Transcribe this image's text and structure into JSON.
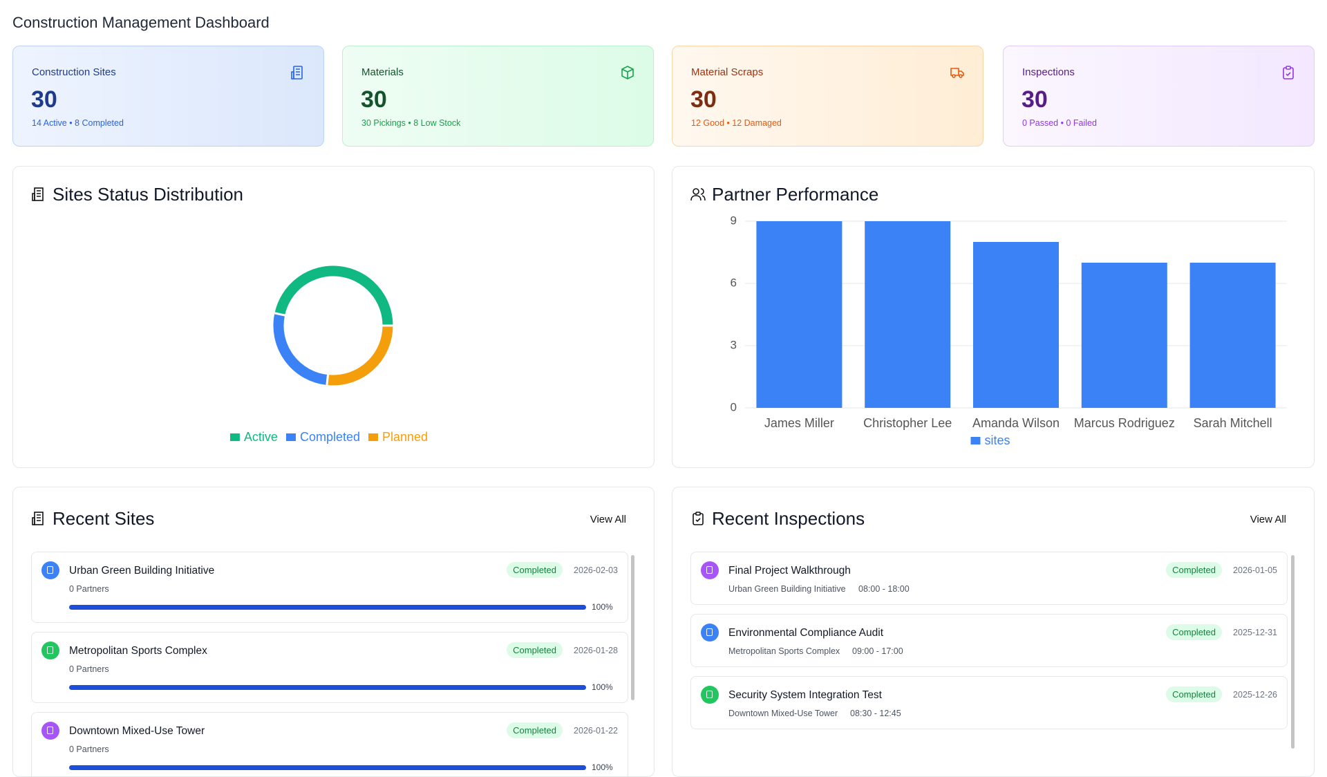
{
  "header": {
    "title": "Construction Management Dashboard"
  },
  "stat_cards": [
    {
      "label": "Construction Sites",
      "value": 30,
      "detail": "14 Active • 8 Completed"
    },
    {
      "label": "Materials",
      "value": 30,
      "detail": "30 Pickings • 8 Low Stock"
    },
    {
      "label": "Material Scraps",
      "value": 30,
      "detail": "12 Good • 12 Damaged"
    },
    {
      "label": "Inspections",
      "value": 30,
      "detail": "0 Passed • 0 Failed"
    }
  ],
  "chart_data": [
    {
      "type": "donut",
      "title": "Sites Status Distribution",
      "categories": [
        "Active",
        "Completed",
        "Planned"
      ],
      "values": [
        14,
        8,
        8
      ],
      "colors": [
        "#10b981",
        "#3b82f6",
        "#f59e0b"
      ],
      "legend": "bottom"
    },
    {
      "type": "bar",
      "title": "Partner Performance",
      "categories": [
        "James Miller",
        "Christopher Lee",
        "Amanda Wilson",
        "Marcus Rodriguez",
        "Sarah Mitchell"
      ],
      "series": [
        {
          "name": "sites",
          "color": "#3b82f6",
          "values": [
            9,
            9,
            8,
            7,
            7
          ]
        }
      ],
      "ylim": [
        0,
        9
      ],
      "yticks": [
        0,
        3,
        6,
        9
      ],
      "grid": true,
      "legend": "bottom"
    }
  ],
  "recent_sites": {
    "title": "Recent Sites",
    "action": "View All",
    "items": [
      {
        "name": "Urban Green Building Initiative",
        "status": "Completed",
        "date": "2026-02-03",
        "partners": "0 Partners",
        "progress": 100,
        "progress_label": "100%",
        "icon_color": "#3b82f6"
      },
      {
        "name": "Metropolitan Sports Complex",
        "status": "Completed",
        "date": "2026-01-28",
        "partners": "0 Partners",
        "progress": 100,
        "progress_label": "100%",
        "icon_color": "#22c55e"
      },
      {
        "name": "Downtown Mixed-Use Tower",
        "status": "Completed",
        "date": "2026-01-22",
        "partners": "0 Partners",
        "progress": 100,
        "progress_label": "100%",
        "icon_color": "#a855f7"
      }
    ]
  },
  "recent_inspections": {
    "title": "Recent Inspections",
    "action": "View All",
    "items": [
      {
        "name": "Final Project Walkthrough",
        "site": "Urban Green Building Initiative",
        "time": "08:00 - 18:00",
        "status": "Completed",
        "date": "2026-01-05",
        "icon_color": "#a855f7"
      },
      {
        "name": "Environmental Compliance Audit",
        "site": "Metropolitan Sports Complex",
        "time": "09:00 - 17:00",
        "status": "Completed",
        "date": "2025-12-31",
        "icon_color": "#3b82f6"
      },
      {
        "name": "Security System Integration Test",
        "site": "Downtown Mixed-Use Tower",
        "time": "08:30 - 12:45",
        "status": "Completed",
        "date": "2025-12-26",
        "icon_color": "#22c55e"
      }
    ]
  }
}
